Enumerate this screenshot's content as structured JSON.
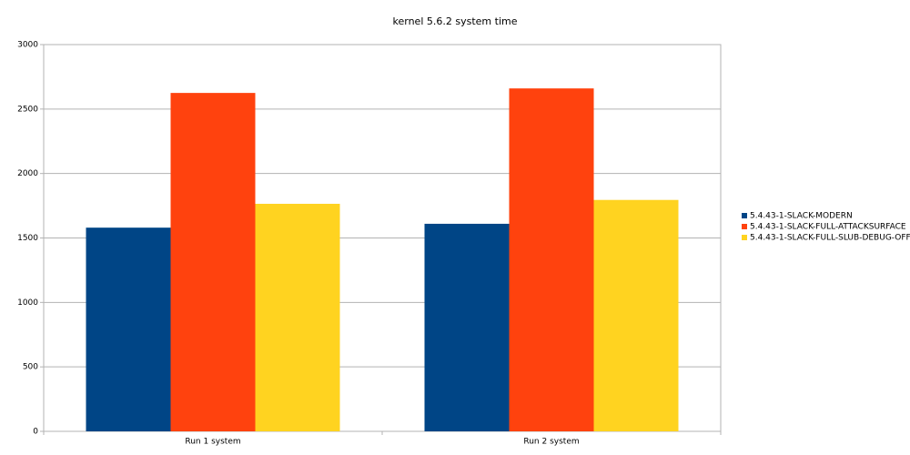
{
  "chart_data": {
    "type": "bar",
    "title": "kernel 5.6.2 system time",
    "categories": [
      "Run 1 system",
      "Run 2 system"
    ],
    "series": [
      {
        "name": "5.4.43-1-SLACK-MODERN",
        "color": "#004586",
        "values": [
          1580,
          1610
        ]
      },
      {
        "name": "5.4.43-1-SLACK-FULL-ATTACKSURFACE",
        "color": "#ff420e",
        "values": [
          2625,
          2660
        ]
      },
      {
        "name": "5.4.43-1-SLACK-FULL-SLUB-DEBUG-OFF",
        "color": "#ffd320",
        "values": [
          1765,
          1795
        ]
      }
    ],
    "ylim": [
      0,
      3000
    ],
    "yticks": [
      0,
      500,
      1000,
      1500,
      2000,
      2500,
      3000
    ],
    "grid": true,
    "legend": "right"
  }
}
